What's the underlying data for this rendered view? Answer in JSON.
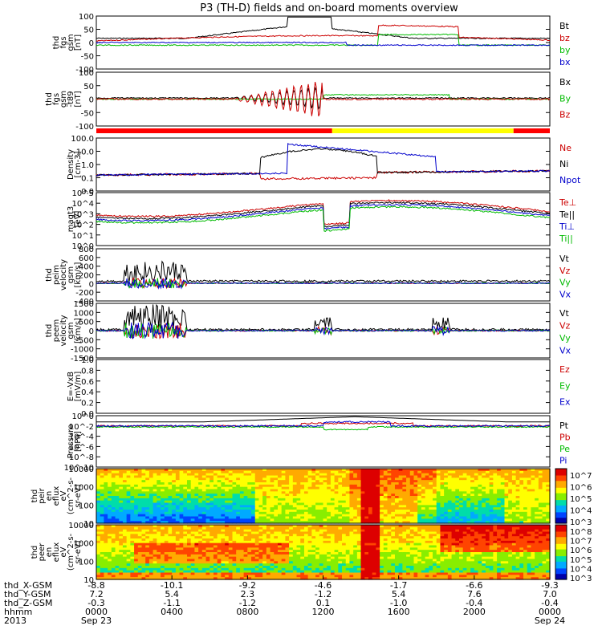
{
  "title": "P3 (TH-D) fields and on-board moments overview",
  "chart_data": {
    "type": "line",
    "title": "P3 (TH-D) fields and on-board moments overview",
    "x_range": [
      "Sep 23 0000",
      "Sep 24 0000"
    ],
    "panels": [
      {
        "id": "fgs",
        "ylabel": [
          "thd",
          "fgs",
          "gsm",
          "[nT]"
        ],
        "yticks": [
          "100",
          "50",
          "0",
          "-50",
          "-100"
        ],
        "ylim": [
          -100,
          100
        ],
        "series": [
          {
            "name": "Bt",
            "color": "#000000"
          },
          {
            "name": "bz",
            "color": "#cc0000"
          },
          {
            "name": "by",
            "color": "#00bb00"
          },
          {
            "name": "bx",
            "color": "#0000cc"
          }
        ]
      },
      {
        "id": "fgs_gsm",
        "ylabel": [
          "thd",
          "fgs",
          "gsm",
          "-t89",
          "[nT]"
        ],
        "yticks": [
          "100",
          "50",
          "0",
          "-50",
          "-100"
        ],
        "ylim": [
          -120,
          100
        ],
        "series": [
          {
            "name": "Bx",
            "color": "#000000"
          },
          {
            "name": "By",
            "color": "#00bb00"
          },
          {
            "name": "Bz",
            "color": "#cc0000"
          }
        ]
      },
      {
        "id": "density",
        "ylabel": [
          "Density",
          "[cm-3]"
        ],
        "yticks": [
          "100.0",
          "10.0",
          "1.0",
          "0.1",
          "0.0"
        ],
        "scale": "log",
        "series": [
          {
            "name": "Ne",
            "color": "#cc0000"
          },
          {
            "name": "Ni",
            "color": "#000000"
          },
          {
            "name": "Npot",
            "color": "#0000cc"
          }
        ]
      },
      {
        "id": "temperature",
        "ylabel": [
          "magt3",
          "[eV]"
        ],
        "yticks": [
          "10^5",
          "10^4",
          "10^3",
          "10^2",
          "10^1",
          "10^0"
        ],
        "scale": "log",
        "series": [
          {
            "name": "Te⊥",
            "color": "#cc0000"
          },
          {
            "name": "Te||",
            "color": "#000000"
          },
          {
            "name": "Ti⊥",
            "color": "#0000cc"
          },
          {
            "name": "Ti||",
            "color": "#00bb00"
          }
        ]
      },
      {
        "id": "peim_velocity",
        "ylabel": [
          "thd",
          "peim",
          "velocity",
          "gsm",
          "[km/s]"
        ],
        "yticks": [
          "800",
          "600",
          "400",
          "200",
          "0",
          "-200",
          "-400"
        ],
        "ylim": [
          -400,
          800
        ],
        "series": [
          {
            "name": "Vt",
            "color": "#000000"
          },
          {
            "name": "Vz",
            "color": "#cc0000"
          },
          {
            "name": "Vy",
            "color": "#00bb00"
          },
          {
            "name": "Vx",
            "color": "#0000cc"
          }
        ]
      },
      {
        "id": "peem_velocity",
        "ylabel": [
          "thd",
          "peem",
          "velocity",
          "gsm",
          "[km/s]"
        ],
        "yticks": [
          "1500",
          "1000",
          "500",
          "0",
          "-500",
          "-1000",
          "-1500"
        ],
        "ylim": [
          -1500,
          1500
        ],
        "series": [
          {
            "name": "Vt",
            "color": "#000000"
          },
          {
            "name": "Vz",
            "color": "#cc0000"
          },
          {
            "name": "Vy",
            "color": "#00bb00"
          },
          {
            "name": "Vx",
            "color": "#0000cc"
          }
        ]
      },
      {
        "id": "efield",
        "ylabel": [
          "E=-VxB",
          "[mV/m]"
        ],
        "yticks": [
          "1.0",
          "0.8",
          "0.6",
          "0.4",
          "0.2",
          "0.0"
        ],
        "ylim": [
          0,
          1
        ],
        "series": [
          {
            "name": "Ez",
            "color": "#cc0000"
          },
          {
            "name": "Ey",
            "color": "#00bb00"
          },
          {
            "name": "Ex",
            "color": "#0000cc"
          }
        ]
      },
      {
        "id": "pressure",
        "ylabel": [
          "Pressure",
          "[nPa]"
        ],
        "yticks": [
          "10^0",
          "10^-2",
          "10^-4",
          "10^-6",
          "10^-8",
          "10^-10"
        ],
        "scale": "log",
        "series": [
          {
            "name": "Pt",
            "color": "#000000"
          },
          {
            "name": "Pb",
            "color": "#cc0000"
          },
          {
            "name": "Pe",
            "color": "#00bb00"
          },
          {
            "name": "Pi",
            "color": "#0000cc"
          }
        ]
      },
      {
        "id": "peir_spec",
        "ylabel": [
          "thd",
          "peir",
          "en",
          "eflux",
          "eV",
          "(cm^2-s-",
          "sr-eV)"
        ],
        "yticks": [
          "10000",
          "1000",
          "100",
          "10"
        ],
        "type": "heatmap",
        "colorbar": [
          "10^7",
          "10^6",
          "10^5",
          "10^4",
          "10^3"
        ]
      },
      {
        "id": "peer_spec",
        "ylabel": [
          "thd",
          "peer",
          "en",
          "eflux",
          "eV",
          "(cm^2-s-",
          "sr-eV)"
        ],
        "yticks": [
          "10000",
          "1000",
          "100",
          "10"
        ],
        "type": "heatmap",
        "colorbar": [
          "10^8",
          "10^7",
          "10^6",
          "10^5",
          "10^4",
          "10^3"
        ]
      }
    ],
    "bottom_axis": {
      "row_labels": [
        "thd_X-GSM",
        "thd_Y-GSM",
        "thd_Z-GSM",
        "hhmm",
        "2013"
      ],
      "columns": [
        {
          "x": "-8.8",
          "y": "7.2",
          "z": "-0.3",
          "t": "0000",
          "d": "Sep 23"
        },
        {
          "x": "-10.1",
          "y": "5.4",
          "z": "-1.1",
          "t": "0400",
          "d": ""
        },
        {
          "x": "-9.2",
          "y": "2.3",
          "z": "-1.2",
          "t": "0800",
          "d": ""
        },
        {
          "x": "-4.6",
          "y": "-1.2",
          "z": "0.1",
          "t": "1200",
          "d": ""
        },
        {
          "x": "-1.7",
          "y": "5.4",
          "z": "-1.0",
          "t": "1600",
          "d": ""
        },
        {
          "x": "-6.6",
          "y": "7.6",
          "z": "-0.4",
          "t": "2000",
          "d": ""
        },
        {
          "x": "-9.3",
          "y": "7.0",
          "z": "-0.4",
          "t": "0000",
          "d": "Sep 24"
        }
      ]
    }
  }
}
